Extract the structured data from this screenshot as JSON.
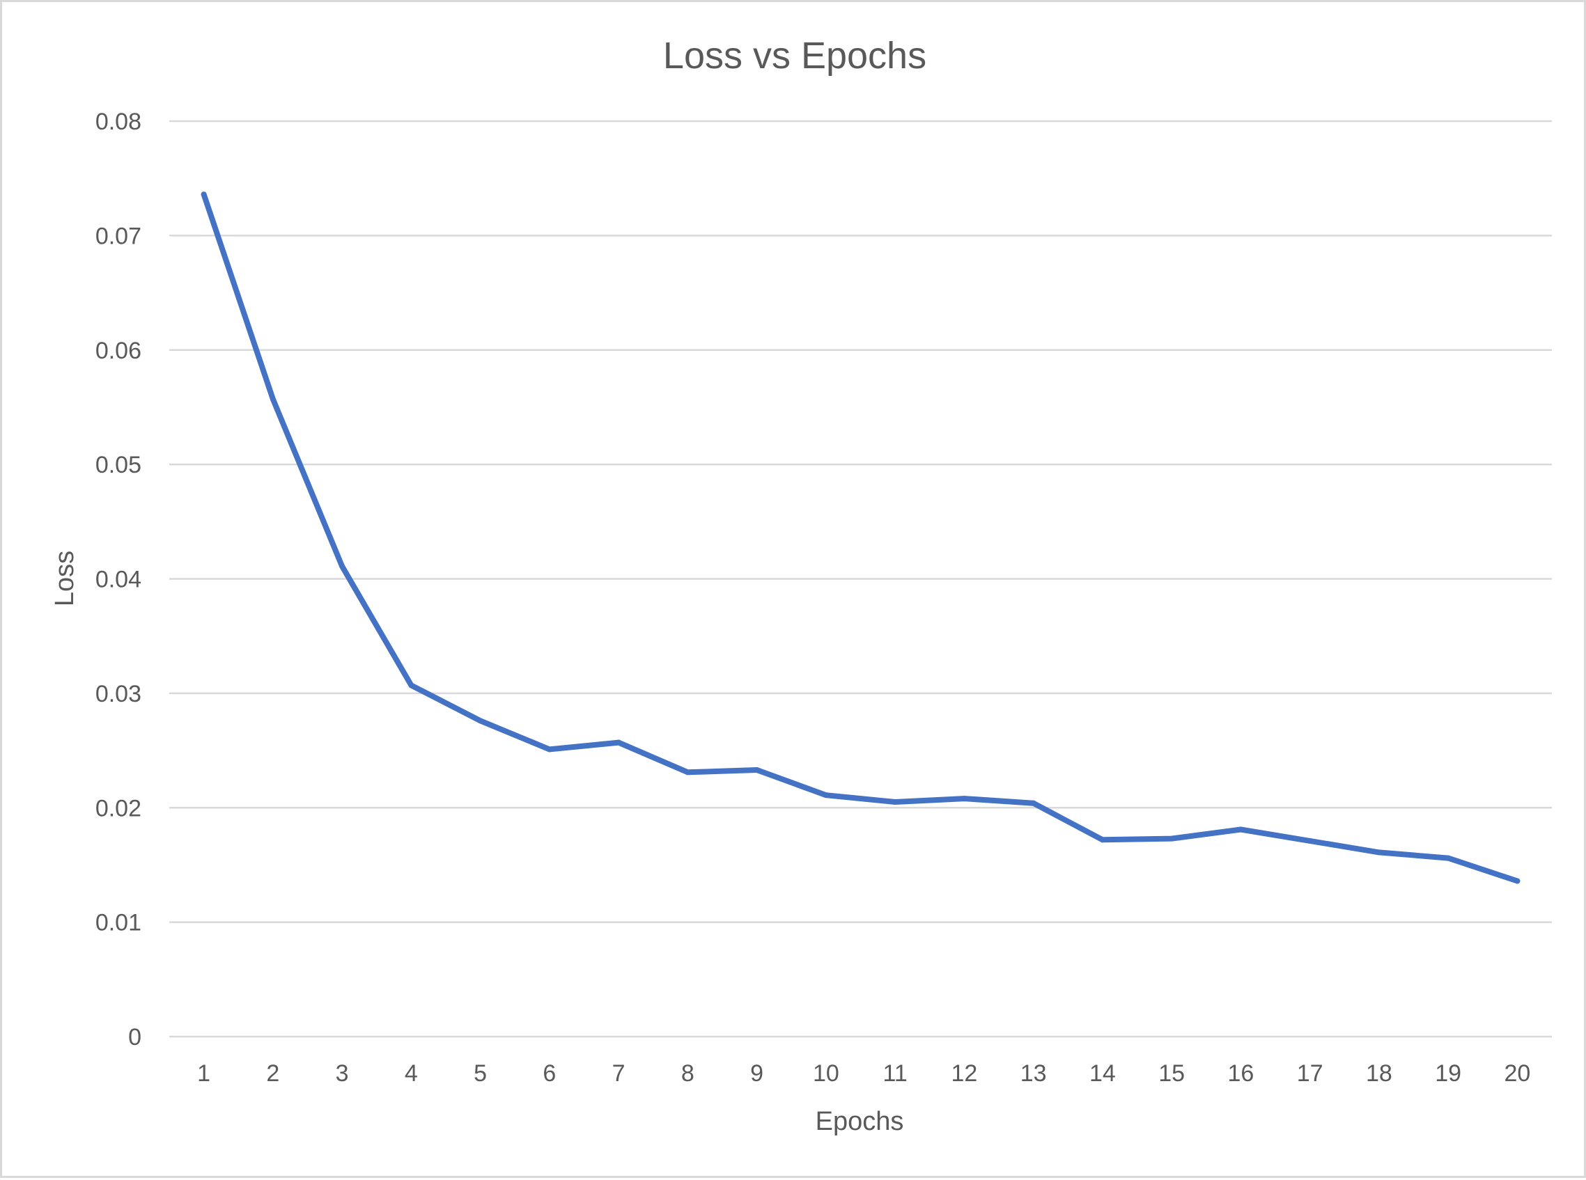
{
  "chart_data": {
    "type": "line",
    "title": "Loss vs Epochs",
    "xlabel": "Epochs",
    "ylabel": "Loss",
    "categories": [
      "1",
      "2",
      "3",
      "4",
      "5",
      "6",
      "7",
      "8",
      "9",
      "10",
      "11",
      "12",
      "13",
      "14",
      "15",
      "16",
      "17",
      "18",
      "19",
      "20"
    ],
    "series": [
      {
        "color": "#4472c4",
        "values": [
          0.0736,
          0.0557,
          0.0411,
          0.0307,
          0.0276,
          0.0251,
          0.0257,
          0.0231,
          0.0233,
          0.0211,
          0.0205,
          0.0208,
          0.0204,
          0.0172,
          0.0173,
          0.0181,
          0.0171,
          0.0161,
          0.0156,
          0.0136
        ]
      }
    ],
    "ylim": [
      0,
      0.08
    ],
    "yticks": [
      "0",
      "0.01",
      "0.02",
      "0.03",
      "0.04",
      "0.05",
      "0.06",
      "0.07",
      "0.08"
    ],
    "grid": true,
    "legend": "none"
  }
}
